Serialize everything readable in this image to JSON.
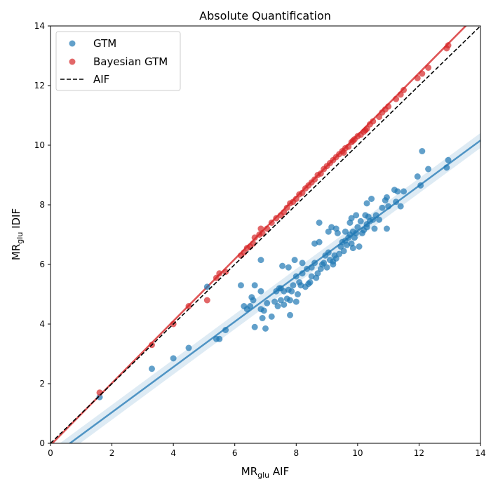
{
  "chart_data": {
    "type": "scatter",
    "title": "Absolute Quantification",
    "xlabel": {
      "base": "MR",
      "sub": "glu",
      "suffix": " AIF"
    },
    "ylabel": {
      "base": "MR",
      "sub": "glu",
      "suffix": " IDIF"
    },
    "xlim": [
      0,
      14
    ],
    "ylim": [
      0,
      14
    ],
    "xticks": [
      0,
      2,
      4,
      6,
      8,
      10,
      12,
      14
    ],
    "yticks": [
      0,
      2,
      4,
      6,
      8,
      10,
      12,
      14
    ],
    "grid": false,
    "legend_position": "top-left",
    "legend": [
      "GTM",
      "Bayesian GTM",
      "AIF"
    ],
    "series": [
      {
        "name": "GTM",
        "color": "#1f77b4",
        "marker": "circle",
        "points": [
          [
            1.6,
            1.55
          ],
          [
            3.3,
            2.5
          ],
          [
            4.0,
            2.85
          ],
          [
            4.5,
            3.2
          ],
          [
            5.4,
            3.5
          ],
          [
            5.5,
            3.5
          ],
          [
            5.7,
            3.8
          ],
          [
            5.1,
            5.25
          ],
          [
            6.2,
            5.3
          ],
          [
            6.3,
            4.6
          ],
          [
            6.4,
            4.5
          ],
          [
            6.5,
            4.6
          ],
          [
            6.55,
            4.9
          ],
          [
            6.6,
            4.8
          ],
          [
            6.65,
            5.3
          ],
          [
            6.65,
            3.9
          ],
          [
            6.85,
            6.15
          ],
          [
            6.85,
            5.1
          ],
          [
            6.85,
            4.5
          ],
          [
            6.9,
            4.2
          ],
          [
            6.95,
            4.45
          ],
          [
            7.0,
            3.85
          ],
          [
            7.05,
            4.7
          ],
          [
            7.2,
            4.25
          ],
          [
            7.3,
            4.75
          ],
          [
            7.35,
            5.1
          ],
          [
            7.4,
            4.6
          ],
          [
            7.45,
            5.2
          ],
          [
            7.5,
            5.2
          ],
          [
            7.5,
            4.8
          ],
          [
            7.55,
            5.95
          ],
          [
            7.6,
            5.1
          ],
          [
            7.6,
            4.65
          ],
          [
            7.7,
            4.85
          ],
          [
            7.75,
            5.9
          ],
          [
            7.75,
            5.15
          ],
          [
            7.8,
            4.8
          ],
          [
            7.8,
            4.3
          ],
          [
            7.85,
            5.1
          ],
          [
            7.9,
            5.3
          ],
          [
            7.95,
            6.15
          ],
          [
            8.0,
            5.6
          ],
          [
            8.0,
            4.75
          ],
          [
            8.05,
            5.0
          ],
          [
            8.1,
            5.4
          ],
          [
            8.15,
            5.3
          ],
          [
            8.2,
            5.7
          ],
          [
            8.2,
            6.05
          ],
          [
            8.3,
            5.25
          ],
          [
            8.35,
            5.85
          ],
          [
            8.4,
            5.35
          ],
          [
            8.45,
            5.4
          ],
          [
            8.5,
            5.6
          ],
          [
            8.5,
            5.9
          ],
          [
            8.6,
            6.05
          ],
          [
            8.6,
            6.7
          ],
          [
            8.65,
            5.55
          ],
          [
            8.7,
            5.7
          ],
          [
            8.75,
            6.75
          ],
          [
            8.75,
            7.4
          ],
          [
            8.8,
            5.85
          ],
          [
            8.85,
            6.0
          ],
          [
            8.9,
            6.05
          ],
          [
            8.95,
            6.3
          ],
          [
            9.0,
            5.9
          ],
          [
            9.05,
            6.4
          ],
          [
            9.1,
            6.15
          ],
          [
            9.15,
            7.25
          ],
          [
            9.2,
            6.0
          ],
          [
            9.2,
            6.1
          ],
          [
            9.25,
            6.3
          ],
          [
            9.3,
            6.2
          ],
          [
            9.3,
            7.2
          ],
          [
            9.35,
            7.05
          ],
          [
            9.4,
            6.35
          ],
          [
            9.45,
            6.6
          ],
          [
            9.5,
            6.75
          ],
          [
            9.55,
            6.45
          ],
          [
            9.6,
            6.8
          ],
          [
            9.6,
            7.1
          ],
          [
            9.65,
            6.65
          ],
          [
            9.7,
            6.9
          ],
          [
            9.75,
            7.4
          ],
          [
            9.75,
            7.0
          ],
          [
            9.8,
            7.55
          ],
          [
            9.8,
            6.7
          ],
          [
            9.85,
            7.1
          ],
          [
            9.85,
            6.55
          ],
          [
            9.9,
            6.9
          ],
          [
            9.95,
            7.65
          ],
          [
            9.95,
            7.05
          ],
          [
            10.0,
            7.25
          ],
          [
            10.05,
            6.6
          ],
          [
            10.1,
            7.45
          ],
          [
            10.15,
            7.05
          ],
          [
            10.2,
            7.15
          ],
          [
            10.25,
            7.65
          ],
          [
            10.3,
            7.35
          ],
          [
            10.3,
            7.25
          ],
          [
            10.35,
            7.6
          ],
          [
            10.4,
            7.45
          ],
          [
            10.45,
            8.2
          ],
          [
            10.5,
            7.5
          ],
          [
            10.55,
            7.2
          ],
          [
            10.6,
            7.65
          ],
          [
            10.7,
            7.5
          ],
          [
            10.8,
            7.9
          ],
          [
            10.9,
            8.15
          ],
          [
            10.95,
            7.2
          ],
          [
            10.95,
            8.25
          ],
          [
            11.0,
            7.95
          ],
          [
            11.2,
            8.5
          ],
          [
            11.25,
            8.1
          ],
          [
            11.3,
            8.45
          ],
          [
            11.4,
            7.95
          ],
          [
            11.5,
            8.45
          ],
          [
            11.95,
            8.95
          ],
          [
            12.05,
            8.65
          ],
          [
            12.1,
            9.8
          ],
          [
            12.3,
            9.2
          ],
          [
            12.9,
            9.25
          ],
          [
            12.95,
            9.5
          ],
          [
            10.3,
            8.05
          ],
          [
            9.05,
            7.1
          ]
        ],
        "trend": {
          "type": "linear",
          "slope": 0.76,
          "intercept": -0.48,
          "ci_halfwidth": 0.25
        }
      },
      {
        "name": "Bayesian GTM",
        "color": "#d62728",
        "marker": "circle",
        "points": [
          [
            1.6,
            1.7
          ],
          [
            3.3,
            3.3
          ],
          [
            4.0,
            4.0
          ],
          [
            4.5,
            4.6
          ],
          [
            5.1,
            4.8
          ],
          [
            5.4,
            5.55
          ],
          [
            5.5,
            5.7
          ],
          [
            5.7,
            5.75
          ],
          [
            6.2,
            6.3
          ],
          [
            6.3,
            6.4
          ],
          [
            6.4,
            6.55
          ],
          [
            6.5,
            6.6
          ],
          [
            6.6,
            6.7
          ],
          [
            6.65,
            6.9
          ],
          [
            6.8,
            7.0
          ],
          [
            6.85,
            7.2
          ],
          [
            6.9,
            7.05
          ],
          [
            7.05,
            7.2
          ],
          [
            7.2,
            7.4
          ],
          [
            7.35,
            7.55
          ],
          [
            7.5,
            7.65
          ],
          [
            7.6,
            7.75
          ],
          [
            7.7,
            7.9
          ],
          [
            7.8,
            8.05
          ],
          [
            7.9,
            8.1
          ],
          [
            8.0,
            8.2
          ],
          [
            8.1,
            8.35
          ],
          [
            8.2,
            8.4
          ],
          [
            8.3,
            8.55
          ],
          [
            8.4,
            8.65
          ],
          [
            8.5,
            8.75
          ],
          [
            8.6,
            8.85
          ],
          [
            8.7,
            9.0
          ],
          [
            8.8,
            9.05
          ],
          [
            8.9,
            9.2
          ],
          [
            9.0,
            9.3
          ],
          [
            9.1,
            9.4
          ],
          [
            9.2,
            9.5
          ],
          [
            9.3,
            9.6
          ],
          [
            9.4,
            9.7
          ],
          [
            9.5,
            9.8
          ],
          [
            9.6,
            9.9
          ],
          [
            9.7,
            9.95
          ],
          [
            9.8,
            10.1
          ],
          [
            9.9,
            10.2
          ],
          [
            10.0,
            10.3
          ],
          [
            10.1,
            10.35
          ],
          [
            10.2,
            10.45
          ],
          [
            10.3,
            10.55
          ],
          [
            10.4,
            10.7
          ],
          [
            10.5,
            10.8
          ],
          [
            10.7,
            10.95
          ],
          [
            10.8,
            11.1
          ],
          [
            10.9,
            11.2
          ],
          [
            11.0,
            11.3
          ],
          [
            11.25,
            11.55
          ],
          [
            11.4,
            11.7
          ],
          [
            11.5,
            11.85
          ],
          [
            11.95,
            12.25
          ],
          [
            12.1,
            12.4
          ],
          [
            12.3,
            12.6
          ],
          [
            12.9,
            13.25
          ],
          [
            12.95,
            13.35
          ],
          [
            9.55,
            9.75
          ],
          [
            9.85,
            10.15
          ],
          [
            10.25,
            10.5
          ]
        ],
        "trend": {
          "type": "linear",
          "slope": 1.04,
          "intercept": -0.06,
          "ci_halfwidth": 0.05
        }
      },
      {
        "name": "AIF",
        "color": "#000000",
        "line_style": "dashed",
        "points": [
          [
            0,
            0
          ],
          [
            14,
            14
          ]
        ]
      }
    ]
  }
}
